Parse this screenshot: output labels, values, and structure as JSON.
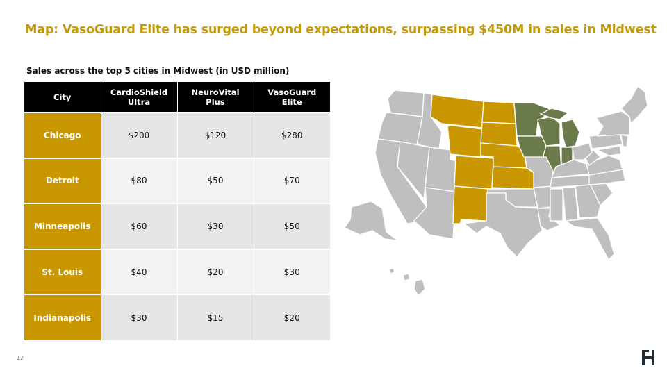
{
  "title": "Map: VasoGuard Elite has surged beyond expectations, surpassing $450M in sales in Midwest",
  "subtitle": "Sales across the top 5 cities in Midwest (in USD million)",
  "table": {
    "headers": [
      "City",
      "CardioShield Ultra",
      "NeuroVital Plus",
      "VasoGuard Elite"
    ],
    "rows": [
      {
        "city": "Chicago",
        "cardioshield": "$200",
        "neurovital": "$120",
        "vasoguard": "$280"
      },
      {
        "city": "Detroit",
        "cardioshield": "$80",
        "neurovital": "$50",
        "vasoguard": "$70"
      },
      {
        "city": "Minneapolis",
        "cardioshield": "$60",
        "neurovital": "$30",
        "vasoguard": "$50"
      },
      {
        "city": "St. Louis",
        "cardioshield": "$40",
        "neurovital": "$20",
        "vasoguard": "$30"
      },
      {
        "city": "Indianapolis",
        "cardioshield": "$30",
        "neurovital": "$15",
        "vasoguard": "$20"
      }
    ]
  },
  "map": {
    "highlight_gold": [
      "Montana",
      "North Dakota",
      "South Dakota",
      "Wyoming",
      "Nebraska",
      "Colorado",
      "Kansas",
      "New Mexico"
    ],
    "highlight_green": [
      "Minnesota",
      "Wisconsin",
      "Michigan",
      "Iowa",
      "Illinois",
      "Indiana"
    ],
    "colors": {
      "gold": "#C99700",
      "green": "#6B7A4A",
      "gray": "#BFBFBF"
    }
  },
  "page_number": "12",
  "colors": {
    "title": "#C39A0A",
    "header_bg": "#000000",
    "city_bg": "#C99700"
  }
}
